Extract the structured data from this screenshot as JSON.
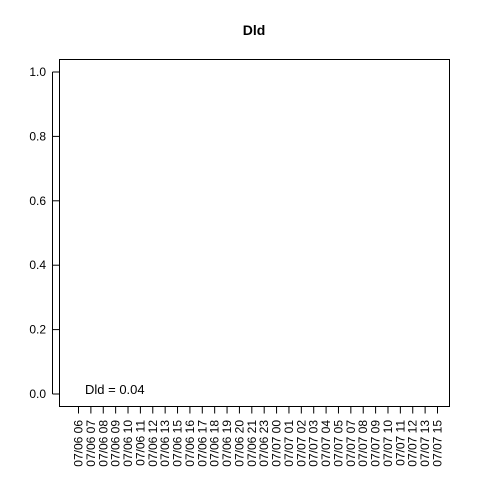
{
  "chart_data": {
    "type": "line",
    "title": "Dld",
    "xlabel": "",
    "ylabel": "",
    "categories": [
      "07/06 06",
      "07/06 07",
      "07/06 08",
      "07/06 09",
      "07/06 10",
      "07/06 11",
      "07/06 12",
      "07/06 13",
      "07/06 15",
      "07/06 16",
      "07/06 17",
      "07/06 18",
      "07/06 19",
      "07/06 20",
      "07/06 21",
      "07/06 23",
      "07/07 00",
      "07/07 01",
      "07/07 02",
      "07/07 03",
      "07/07 04",
      "07/07 05",
      "07/07 07",
      "07/07 08",
      "07/07 09",
      "07/07 10",
      "07/07 11",
      "07/07 12",
      "07/07 13",
      "07/07 15"
    ],
    "series": [],
    "ylim": [
      0,
      1
    ],
    "yticks": [
      0.0,
      0.2,
      0.4,
      0.6,
      0.8,
      1.0
    ],
    "ytick_labels": [
      "0.0",
      "0.2",
      "0.4",
      "0.6",
      "0.8",
      "1.0"
    ],
    "grid": false,
    "annotation": {
      "text": "Dld = 0.04",
      "x_category": "07/06 07",
      "y": 0.0
    }
  }
}
